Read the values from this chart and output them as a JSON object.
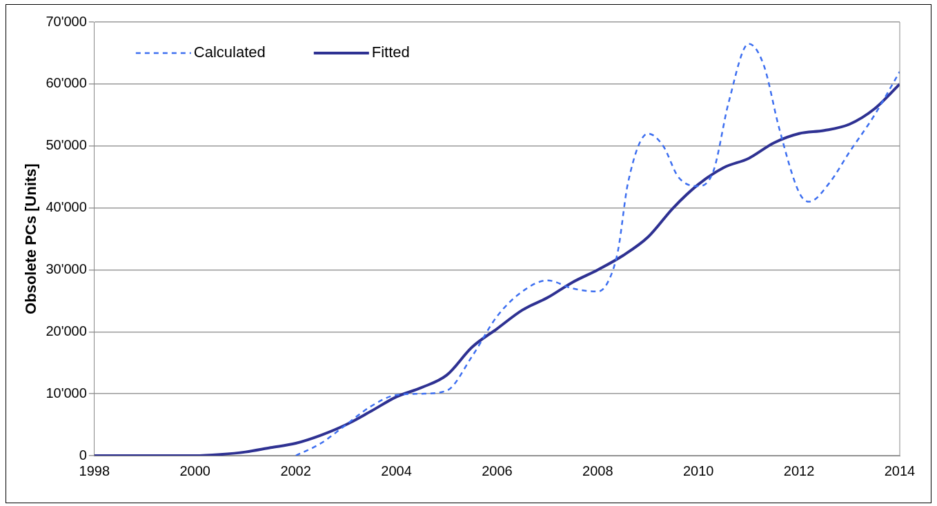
{
  "chart_data": {
    "type": "line",
    "ylabel": "Obsolete PCs [Units]",
    "xlim": [
      1998,
      2014
    ],
    "xticks": [
      1998,
      2000,
      2002,
      2004,
      2006,
      2008,
      2010,
      2012,
      2014
    ],
    "ylim": [
      0,
      70000
    ],
    "yticks": [
      {
        "value": 0,
        "label": "0"
      },
      {
        "value": 10000,
        "label": "10'000"
      },
      {
        "value": 20000,
        "label": "20'000"
      },
      {
        "value": 30000,
        "label": "30'000"
      },
      {
        "value": 40000,
        "label": "40'000"
      },
      {
        "value": 50000,
        "label": "50'000"
      },
      {
        "value": 60000,
        "label": "60'000"
      },
      {
        "value": 70000,
        "label": "70'000"
      }
    ],
    "grid": "y",
    "legend": "top left",
    "marker": "none",
    "series": [
      {
        "name": "Calculated",
        "color": "#3c6ef0",
        "line_style": "dashed",
        "x": [
          2002,
          2002.5,
          2003,
          2003.5,
          2004,
          2004.5,
          2005,
          2005.5,
          2006,
          2006.5,
          2007,
          2007.5,
          2008,
          2008.2,
          2008.4,
          2008.6,
          2009,
          2009.3,
          2009.6,
          2010,
          2010.3,
          2010.6,
          2011,
          2011.3,
          2011.6,
          2012,
          2012.2,
          2012.6,
          2013,
          2013.5,
          2014
        ],
        "values": [
          0,
          2000,
          5000,
          8000,
          9800,
          10000,
          10500,
          16000,
          22500,
          26500,
          28300,
          27000,
          26500,
          28000,
          33000,
          44000,
          52000,
          50000,
          45000,
          43500,
          46000,
          57000,
          66500,
          63000,
          53000,
          42500,
          41000,
          44000,
          49000,
          55000,
          62000
        ]
      },
      {
        "name": "Fitted",
        "color": "#2e3192",
        "line_style": "solid",
        "x": [
          1998,
          2000,
          2000.5,
          2001,
          2001.5,
          2002,
          2002.5,
          2003,
          2003.5,
          2004,
          2004.5,
          2005,
          2005.5,
          2006,
          2006.5,
          2007,
          2007.5,
          2008,
          2008.5,
          2009,
          2009.5,
          2010,
          2010.5,
          2011,
          2011.5,
          2012,
          2012.5,
          2013,
          2013.5,
          2014
        ],
        "values": [
          0,
          0,
          200,
          600,
          1300,
          2000,
          3300,
          5000,
          7200,
          9500,
          11000,
          13000,
          17500,
          20500,
          23500,
          25500,
          28000,
          30000,
          32300,
          35300,
          40000,
          43800,
          46500,
          48000,
          50500,
          52000,
          52500,
          53500,
          56000,
          60000
        ]
      }
    ]
  }
}
